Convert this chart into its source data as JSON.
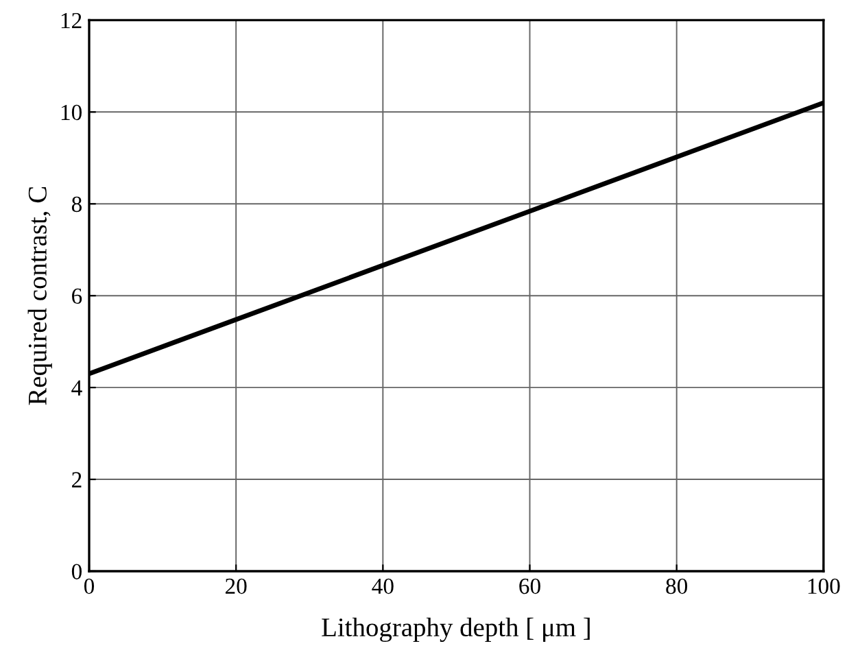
{
  "chart_data": {
    "type": "line",
    "xlabel": "Lithography depth [ μm ]",
    "ylabel": "Required contrast, C",
    "x": [
      0,
      100
    ],
    "series": [
      {
        "color": "#000000",
        "values": [
          4.3,
          10.2
        ]
      }
    ],
    "xlim": [
      0,
      100
    ],
    "ylim": [
      0,
      12
    ],
    "xticks": [
      0,
      20,
      40,
      60,
      80,
      100
    ],
    "yticks": [
      0,
      2,
      4,
      6,
      8,
      10,
      12
    ],
    "grid": true,
    "marker": "none",
    "line_style": "solid"
  }
}
